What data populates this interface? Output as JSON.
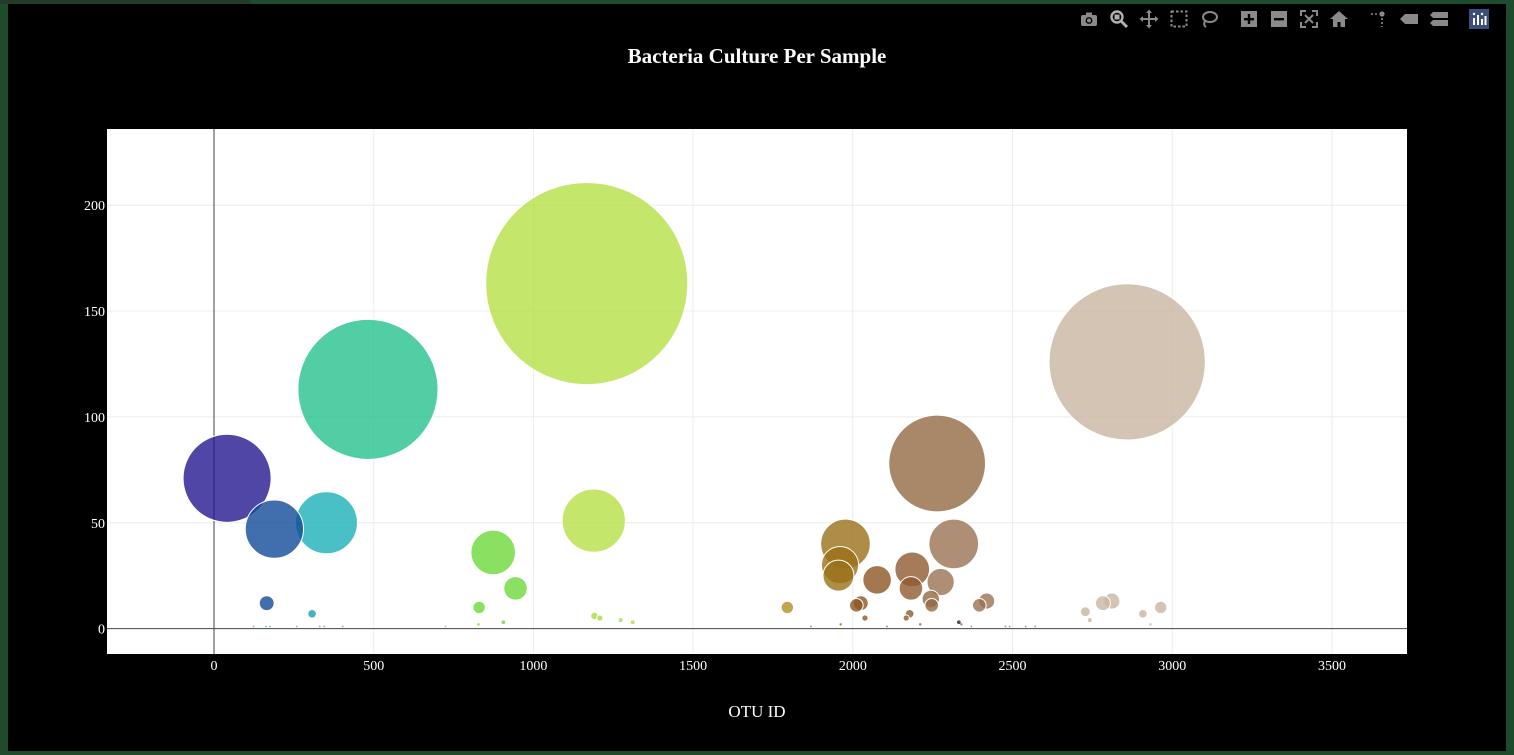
{
  "modebar": {
    "buttons": [
      {
        "name": "camera-icon",
        "label": "Download plot as a png"
      },
      {
        "name": "zoom-icon",
        "label": "Zoom"
      },
      {
        "name": "pan-icon",
        "label": "Pan"
      },
      {
        "name": "box-select-icon",
        "label": "Box Select"
      },
      {
        "name": "lasso-select-icon",
        "label": "Lasso Select"
      },
      {
        "name": "zoom-in-icon",
        "label": "Zoom in"
      },
      {
        "name": "zoom-out-icon",
        "label": "Zoom out"
      },
      {
        "name": "autoscale-icon",
        "label": "Autoscale"
      },
      {
        "name": "home-icon",
        "label": "Reset axes"
      },
      {
        "name": "spike-lines-icon",
        "label": "Toggle Spike Lines"
      },
      {
        "name": "hover-closest-icon",
        "label": "Show closest data on hover"
      },
      {
        "name": "hover-compare-icon",
        "label": "Compare data on hover"
      },
      {
        "name": "plotly-logo-icon",
        "label": "Produced with Plotly"
      }
    ],
    "icon_color": "#8a8a8a"
  },
  "chart_data": {
    "type": "scatter",
    "title": "Bacteria Culture Per Sample",
    "xlabel": "OTU ID",
    "ylabel": "",
    "xlim": [
      -335,
      3735
    ],
    "ylim": [
      -12,
      236
    ],
    "xticks": [
      0,
      500,
      1000,
      1500,
      2000,
      2500,
      3000,
      3500
    ],
    "yticks": [
      0,
      50,
      100,
      150,
      200
    ],
    "grid": true,
    "plot_bg": "#ffffff",
    "paper_bg": "#000000",
    "marker_opacity": 0.8,
    "points": [
      {
        "x": 41,
        "y": 71,
        "size": 71,
        "color": "#23188f"
      },
      {
        "x": 189,
        "y": 47,
        "size": 47,
        "color": "#124b9a"
      },
      {
        "x": 352,
        "y": 50,
        "size": 50,
        "color": "#1cb0b8"
      },
      {
        "x": 482,
        "y": 113,
        "size": 113,
        "color": "#27c28f"
      },
      {
        "x": 1167,
        "y": 163,
        "size": 163,
        "color": "#b5e045"
      },
      {
        "x": 2859,
        "y": 126,
        "size": 126,
        "color": "#c9b5a0"
      },
      {
        "x": 2264,
        "y": 78,
        "size": 78,
        "color": "#946a44"
      },
      {
        "x": 1189,
        "y": 51,
        "size": 51,
        "color": "#b5e045"
      },
      {
        "x": 1977,
        "y": 40,
        "size": 40,
        "color": "#9a7118"
      },
      {
        "x": 2316,
        "y": 40,
        "size": 40,
        "color": "#9a7352"
      },
      {
        "x": 874,
        "y": 36,
        "size": 36,
        "color": "#6cd83a"
      },
      {
        "x": 1960,
        "y": 30,
        "size": 30,
        "color": "#9a7118"
      },
      {
        "x": 2186,
        "y": 28,
        "size": 28,
        "color": "#8f5a30"
      },
      {
        "x": 1955,
        "y": 25,
        "size": 25,
        "color": "#9a7118"
      },
      {
        "x": 2076,
        "y": 23,
        "size": 23,
        "color": "#8f5524"
      },
      {
        "x": 2275,
        "y": 22,
        "size": 22,
        "color": "#9a7352"
      },
      {
        "x": 2182,
        "y": 19,
        "size": 19,
        "color": "#8f5a30"
      },
      {
        "x": 944,
        "y": 19,
        "size": 19,
        "color": "#6cd83a"
      },
      {
        "x": 2244,
        "y": 14,
        "size": 14,
        "color": "#946a44"
      },
      {
        "x": 2419,
        "y": 13,
        "size": 13,
        "color": "#9a7352"
      },
      {
        "x": 2811,
        "y": 13,
        "size": 13,
        "color": "#c9b5a0"
      },
      {
        "x": 165,
        "y": 12,
        "size": 12,
        "color": "#124b9a"
      },
      {
        "x": 2025,
        "y": 12,
        "size": 12,
        "color": "#8f5524"
      },
      {
        "x": 2783,
        "y": 12,
        "size": 12,
        "color": "#c9b5a0"
      },
      {
        "x": 2011,
        "y": 11,
        "size": 11,
        "color": "#8f5524"
      },
      {
        "x": 2247,
        "y": 11,
        "size": 11,
        "color": "#946a44"
      },
      {
        "x": 2396,
        "y": 11,
        "size": 11,
        "color": "#9a7352"
      },
      {
        "x": 1795,
        "y": 10,
        "size": 10,
        "color": "#b09020"
      },
      {
        "x": 830,
        "y": 10,
        "size": 10,
        "color": "#6cd83a"
      },
      {
        "x": 2964,
        "y": 10,
        "size": 10,
        "color": "#c9b5a0"
      },
      {
        "x": 2728,
        "y": 8,
        "size": 8,
        "color": "#c9b5a0"
      },
      {
        "x": 307,
        "y": 7,
        "size": 7,
        "color": "#1a9eb5"
      },
      {
        "x": 2178,
        "y": 7,
        "size": 7,
        "color": "#8f5a30"
      },
      {
        "x": 2908,
        "y": 7,
        "size": 7,
        "color": "#c9b5a0"
      },
      {
        "x": 1191,
        "y": 6,
        "size": 6,
        "color": "#a8dc40"
      },
      {
        "x": 1208,
        "y": 5,
        "size": 5,
        "color": "#a8dc40"
      },
      {
        "x": 2038,
        "y": 5,
        "size": 5,
        "color": "#8f5524"
      },
      {
        "x": 2167,
        "y": 5,
        "size": 5,
        "color": "#8f5a30"
      },
      {
        "x": 1273,
        "y": 4,
        "size": 4,
        "color": "#a8dc40"
      },
      {
        "x": 2742,
        "y": 4,
        "size": 4,
        "color": "#c9b5a0"
      },
      {
        "x": 1311,
        "y": 3,
        "size": 3,
        "color": "#a8dc40"
      },
      {
        "x": 906,
        "y": 3,
        "size": 3,
        "color": "#6cd83a"
      },
      {
        "x": 2332,
        "y": 3,
        "size": 3,
        "color": "#2a2030"
      },
      {
        "x": 2340,
        "y": 2,
        "size": 2,
        "color": "#9a7352"
      },
      {
        "x": 2932,
        "y": 2,
        "size": 2,
        "color": "#c9b5a0"
      },
      {
        "x": 828,
        "y": 2,
        "size": 2,
        "color": "#6cd83a"
      },
      {
        "x": 1962,
        "y": 2,
        "size": 2,
        "color": "#9a7118"
      },
      {
        "x": 2211,
        "y": 2,
        "size": 2,
        "color": "#8f5a30"
      },
      {
        "x": 124,
        "y": 1,
        "size": 1,
        "color": "#5aa0c0"
      },
      {
        "x": 163,
        "y": 1,
        "size": 1,
        "color": "#5aa0c0"
      },
      {
        "x": 175,
        "y": 1,
        "size": 1,
        "color": "#5aa0c0"
      },
      {
        "x": 259,
        "y": 1,
        "size": 1,
        "color": "#5aa0c0"
      },
      {
        "x": 331,
        "y": 1,
        "size": 1,
        "color": "#5aa0c0"
      },
      {
        "x": 345,
        "y": 1,
        "size": 1,
        "color": "#5aa0c0"
      },
      {
        "x": 403,
        "y": 1,
        "size": 1,
        "color": "#5aa0c0"
      },
      {
        "x": 725,
        "y": 1,
        "size": 1,
        "color": "#6cd83a"
      },
      {
        "x": 1869,
        "y": 1,
        "size": 1,
        "color": "#9a7118"
      },
      {
        "x": 2107,
        "y": 1,
        "size": 1,
        "color": "#8f5524"
      },
      {
        "x": 2371,
        "y": 1,
        "size": 1,
        "color": "#9a7352"
      },
      {
        "x": 2478,
        "y": 1,
        "size": 1,
        "color": "#9a7352"
      },
      {
        "x": 2491,
        "y": 1,
        "size": 1,
        "color": "#9a7352"
      },
      {
        "x": 2541,
        "y": 1,
        "size": 1,
        "color": "#9a7352"
      },
      {
        "x": 2571,
        "y": 1,
        "size": 1,
        "color": "#9a7352"
      }
    ]
  }
}
